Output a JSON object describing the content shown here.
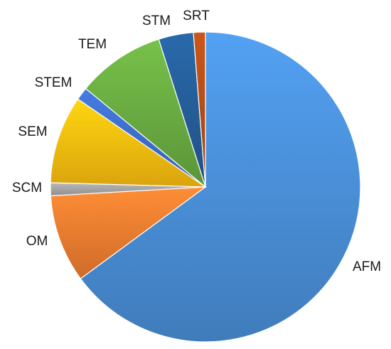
{
  "chart_data": {
    "type": "pie",
    "title": "",
    "categories": [
      "AFM",
      "OM",
      "SCM",
      "SEM",
      "STEM",
      "TEM",
      "STM",
      "SRT"
    ],
    "values": [
      67.9,
      9.6,
      1.4,
      9.6,
      1.4,
      9.6,
      3.8,
      1.3
    ],
    "colors": {
      "AFM": "#4a90d9",
      "OM": "#f07e30",
      "SCM": "#a5a5a5",
      "SEM": "#fdbf0f",
      "STEM": "#3e6fcc",
      "TEM": "#6aac42",
      "STM": "#255e99",
      "SRT": "#b54e17"
    },
    "start_angle_deg": 90,
    "direction": "clockwise",
    "legend": "none"
  }
}
